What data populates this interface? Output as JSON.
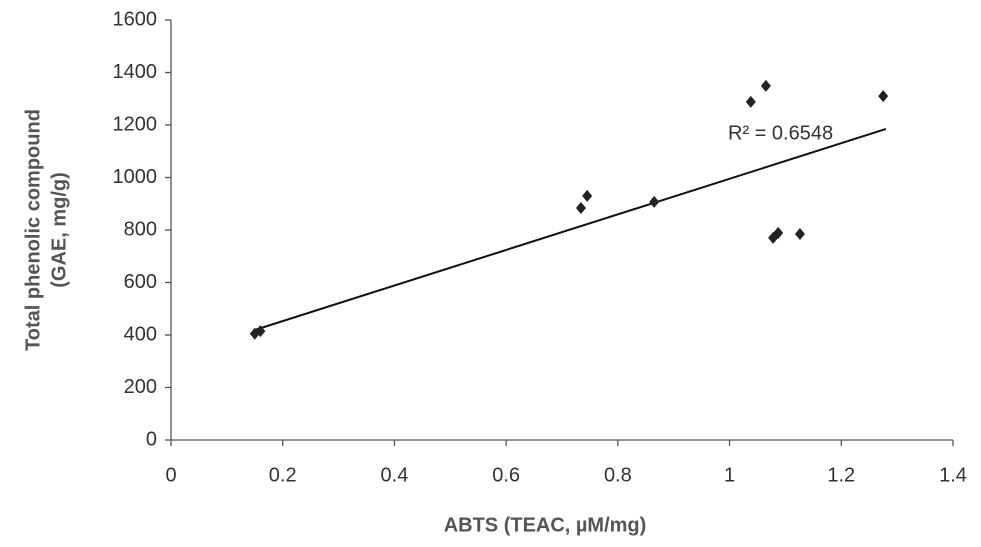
{
  "chart_data": {
    "type": "scatter",
    "x_label": "ABTS (TEAC, µM/mg)",
    "y_label": [
      "Total phenolic compound",
      "(GAE, mg/g)"
    ],
    "annotation": "R² = 0.6548",
    "series": [
      {
        "color": "#222222",
        "x": [
          0.15,
          0.16,
          0.734,
          0.745,
          0.865,
          1.038,
          1.065,
          1.078,
          1.087,
          1.126,
          1.275
        ],
        "values": [
          405,
          415,
          884,
          930,
          907,
          1288,
          1349,
          770,
          789,
          785,
          1310
        ]
      }
    ],
    "trendline": {
      "color": "#111111",
      "x": [
        0.15,
        1.28
      ],
      "y": [
        419,
        1185
      ]
    },
    "xlim": [
      0,
      1.4
    ],
    "xticks": [
      0,
      0.2,
      0.4,
      0.6,
      0.8,
      1,
      1.2,
      1.4
    ],
    "ylim": [
      0,
      1600
    ],
    "yticks": [
      0,
      200,
      400,
      600,
      800,
      1000,
      1200,
      1400,
      1600
    ],
    "grid": false
  }
}
